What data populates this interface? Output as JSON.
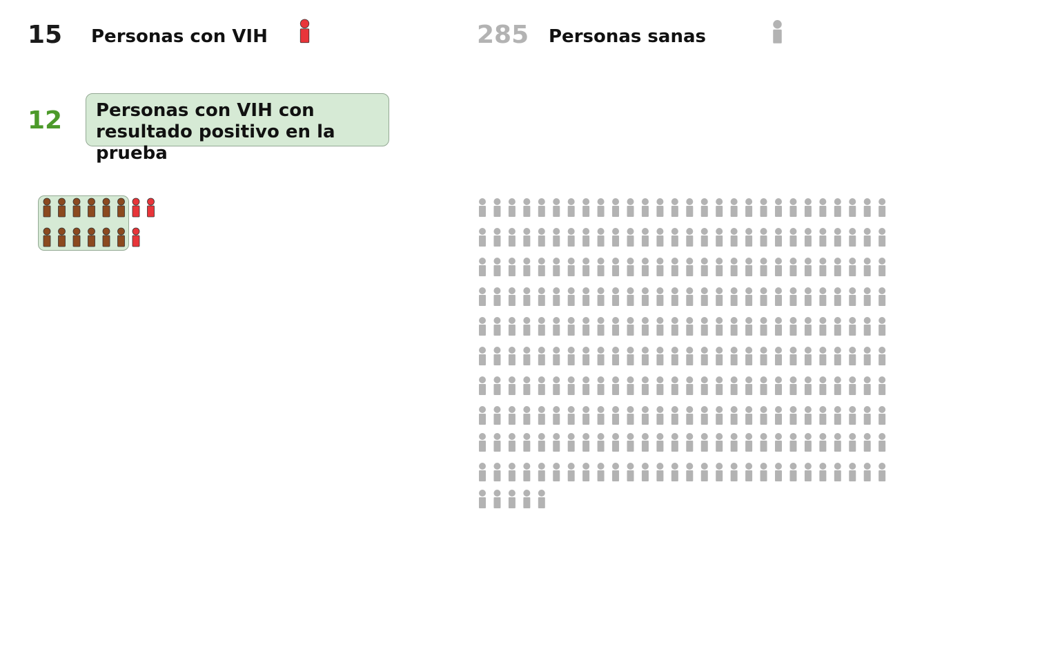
{
  "legend": {
    "hiv": {
      "count": "15",
      "label": "Personas con VIH",
      "color": "#e8353a",
      "count_color": "#1a1a1a"
    },
    "healthy": {
      "count": "285",
      "label": "Personas sanas",
      "color": "#b3b3b3",
      "count_color": "#b3b3b3"
    },
    "tested_positive": {
      "count": "12",
      "label": "Personas con VIH con resultado positivo en la prueba",
      "color": "#8b4a1f",
      "count_color": "#4c9a2a"
    }
  },
  "chart_data": {
    "type": "pictogram",
    "title": "",
    "unit": "persona",
    "series": [
      {
        "name": "Personas con VIH con resultado positivo en la prueba",
        "value": 12,
        "color": "#8b4a1f"
      },
      {
        "name": "Personas con VIH",
        "value": 15,
        "color": "#e8353a"
      },
      {
        "name": "Personas sanas",
        "value": 285,
        "color": "#b3b3b3"
      }
    ],
    "total_population": 300
  }
}
